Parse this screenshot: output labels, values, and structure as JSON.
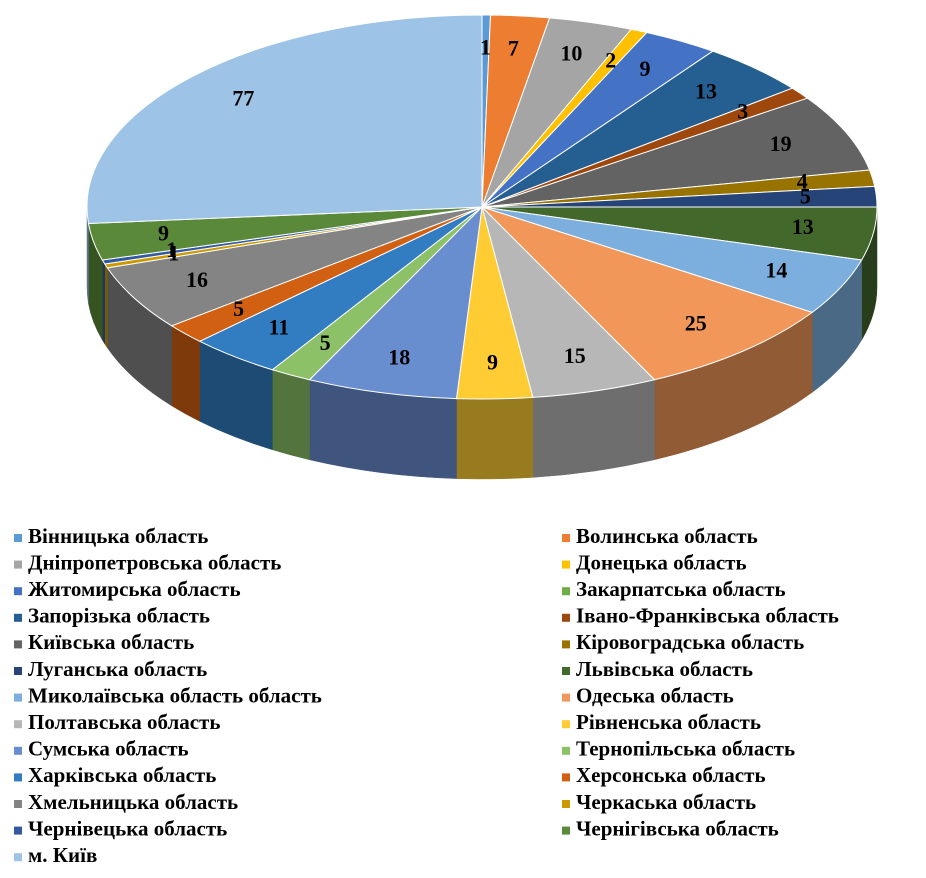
{
  "chart_data": {
    "type": "pie3d",
    "categories": [
      "Вінницька область",
      "Волинська область",
      "Дніпропетровська область",
      "Донецька область",
      "Житомирська область",
      "Закарпатська область",
      "Запорізька область",
      "Івано-Франківська область",
      "Київська область",
      "Кіровоградська  область",
      "Луганська область",
      "Львівська область",
      "Миколаївська область область",
      "Одеська область",
      "Полтавська область",
      "Рівненська область",
      "Сумська область",
      "Тернопільська область",
      "Харківська область",
      "Херсонська область",
      "Хмельницька область",
      "Черкаська область",
      "Чернівецька  область",
      "Чернігівська область",
      "м. Київ"
    ],
    "values": [
      1,
      7,
      10,
      2,
      9,
      0,
      13,
      3,
      19,
      4,
      5,
      13,
      14,
      25,
      15,
      9,
      18,
      5,
      11,
      5,
      16,
      1,
      1,
      9,
      77
    ],
    "colors": [
      "#5b9bd5",
      "#ed7d31",
      "#a5a5a5",
      "#ffc000",
      "#4472c4",
      "#70ad47",
      "#255e91",
      "#9e480e",
      "#636363",
      "#997300",
      "#264478",
      "#43682b",
      "#7cafdd",
      "#f1975a",
      "#b7b7b7",
      "#ffcd33",
      "#698ed0",
      "#8cc168",
      "#327dc2",
      "#d26012",
      "#848484",
      "#cc9a00",
      "#335aa1",
      "#5a8a39",
      "#9dc3e6"
    ],
    "legend": "bottom"
  }
}
